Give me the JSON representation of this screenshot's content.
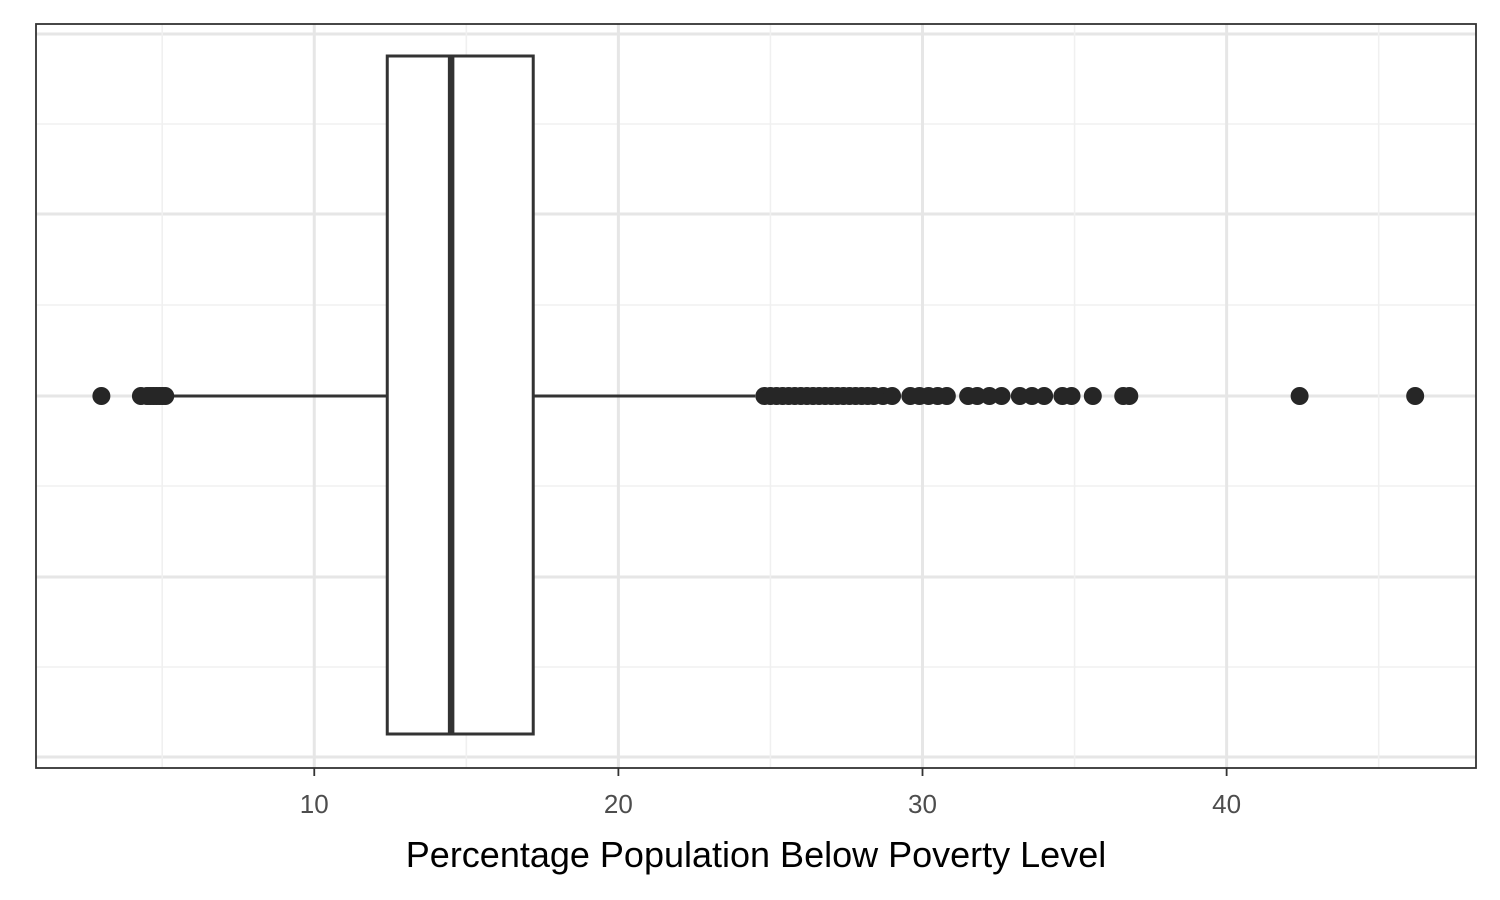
{
  "chart_data": {
    "type": "boxplot",
    "title": "",
    "xlabel": "Percentage Population Below Poverty Level",
    "ylabel": "",
    "xlim": [
      0.85,
      48.2
    ],
    "x_ticks": [
      10,
      20,
      30,
      40
    ],
    "x_tick_labels": [
      "10",
      "20",
      "30",
      "40"
    ],
    "x_minor_gridlines": [
      5,
      15,
      25,
      35,
      45
    ],
    "grid": true,
    "orientation": "horizontal",
    "box": {
      "q1": 12.4,
      "median": 14.5,
      "q3": 17.2,
      "whisker_low": 5.2,
      "whisker_high": 24.5
    },
    "outliers": [
      3.0,
      4.3,
      4.5,
      4.6,
      4.7,
      4.8,
      4.9,
      5.0,
      5.1,
      24.8,
      25.0,
      25.2,
      25.4,
      25.6,
      25.8,
      26.0,
      26.2,
      26.4,
      26.6,
      26.8,
      27.0,
      27.2,
      27.4,
      27.6,
      27.8,
      28.0,
      28.2,
      28.4,
      28.7,
      29.0,
      29.6,
      29.9,
      30.2,
      30.5,
      30.8,
      31.5,
      31.8,
      32.2,
      32.6,
      33.2,
      33.6,
      34.0,
      34.6,
      34.9,
      35.6,
      36.6,
      36.8,
      42.4,
      46.2
    ],
    "colors": {
      "box_fill": "#ffffff",
      "outline": "#333333",
      "points": "#262626",
      "grid_major": "#e6e6e6",
      "grid_minor": "#f0f0f0",
      "panel_border": "#333333"
    }
  }
}
